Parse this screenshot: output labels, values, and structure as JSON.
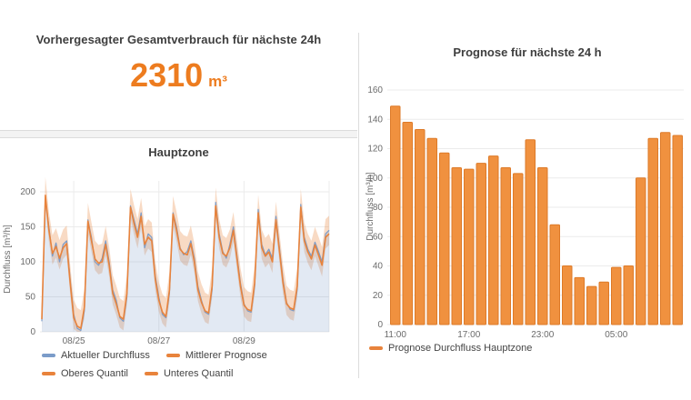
{
  "summary": {
    "title": "Vorhergesagter Gesamtverbrauch für nächste 24h",
    "value": "2310",
    "unit": "m³"
  },
  "colors": {
    "accent_orange": "#ed7c1f",
    "bar_fill": "#f0913f",
    "bar_border": "#dd7a28",
    "line_blue": "#7b9cc9",
    "line_orange": "#e8833c",
    "band_fill": "rgba(232,131,60,0.30)",
    "area_blue": "rgba(123,156,201,0.22)",
    "grid": "#ebebeb",
    "tick_text": "#6b6b6b"
  },
  "chart_data": [
    {
      "type": "line",
      "title": "Hauptzone",
      "ylabel": "Durchfluss [m³/h]",
      "ylim": [
        0,
        225
      ],
      "yticks": [
        0,
        50,
        100,
        150,
        200
      ],
      "x_description": "2-hour steps from 08/24 06:00 to 08/31 00:00",
      "xticks": [
        {
          "index": 9,
          "label": "08/25"
        },
        {
          "index": 33,
          "label": "08/27"
        },
        {
          "index": 57,
          "label": "08/29"
        },
        {
          "index": 81,
          "label": ""
        }
      ],
      "series": [
        {
          "name": "Aktueller Durchfluss",
          "color": "#7b9cc9",
          "values": [
            15,
            190,
            150,
            108,
            127,
            100,
            125,
            130,
            75,
            25,
            5,
            2,
            30,
            160,
            135,
            100,
            95,
            105,
            130,
            100,
            60,
            45,
            20,
            15,
            50,
            180,
            160,
            140,
            170,
            120,
            140,
            135,
            80,
            50,
            25,
            20,
            55,
            170,
            150,
            120,
            110,
            115,
            130,
            105,
            65,
            45,
            28,
            25,
            60,
            185,
            140,
            115,
            105,
            125,
            150,
            110,
            70,
            40,
            30,
            28,
            65,
            175,
            125,
            110,
            118,
            105,
            165,
            120,
            75,
            42,
            32,
            30,
            60,
            182,
            135,
            118,
            108,
            128,
            115,
            100,
            140,
            145
          ]
        },
        {
          "name": "Mittlerer Prognose",
          "color": "#e8833c",
          "values": [
            18,
            195,
            145,
            112,
            122,
            105,
            120,
            126,
            70,
            20,
            8,
            5,
            35,
            158,
            130,
            104,
            98,
            100,
            125,
            95,
            55,
            40,
            22,
            18,
            55,
            178,
            155,
            135,
            165,
            125,
            135,
            130,
            75,
            45,
            28,
            22,
            60,
            168,
            145,
            118,
            112,
            110,
            126,
            100,
            60,
            42,
            30,
            27,
            65,
            180,
            135,
            112,
            108,
            120,
            145,
            105,
            65,
            38,
            32,
            30,
            70,
            170,
            120,
            108,
            114,
            100,
            160,
            115,
            70,
            40,
            34,
            32,
            65,
            178,
            130,
            114,
            104,
            124,
            110,
            95,
            135,
            140
          ]
        }
      ],
      "quantile_band": {
        "upper_offset": 26,
        "lower_offset": 16,
        "basis": "Mittlerer Prognose"
      },
      "legend": [
        {
          "label": "Aktueller Durchfluss",
          "color": "#7b9cc9"
        },
        {
          "label": "Mittlerer Prognose",
          "color": "#e8833c"
        },
        {
          "label": "Oberes Quantil",
          "color": "#e8833c"
        },
        {
          "label": "Unteres Quantil",
          "color": "#e8833c"
        }
      ]
    },
    {
      "type": "bar",
      "title": "Prognose für nächste 24 h",
      "ylabel": "Durchfluss [m³/h]",
      "ylim": [
        0,
        168
      ],
      "yticks": [
        0,
        20,
        40,
        60,
        80,
        100,
        120,
        140,
        160
      ],
      "values": [
        149,
        138,
        133,
        127,
        117,
        107,
        106,
        110,
        115,
        107,
        103,
        126,
        107,
        68,
        40,
        32,
        26,
        29,
        39,
        40,
        100,
        127,
        131,
        129
      ],
      "xticks": [
        {
          "index": 0,
          "label": "11:00"
        },
        {
          "index": 6,
          "label": "17:00"
        },
        {
          "index": 12,
          "label": "23:00"
        },
        {
          "index": 18,
          "label": "05:00"
        }
      ],
      "legend": [
        {
          "label": "Prognose Durchfluss Hauptzone",
          "color": "#e8833c"
        }
      ]
    }
  ]
}
